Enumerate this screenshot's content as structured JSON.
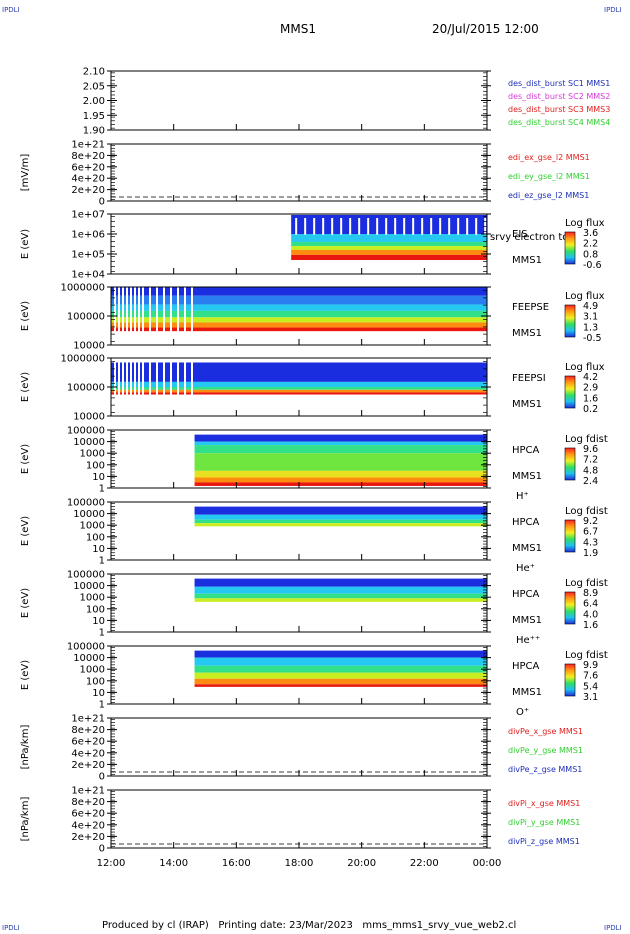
{
  "header": {
    "corner_label": "IPDLI",
    "title": "MMS1",
    "datetime": "20/Jul/2015 12:00"
  },
  "footer": {
    "produced_by": "Produced by cl (IRAP)",
    "printing_date": "Printing date: 23/Mar/2023",
    "filename": "mms_mms1_srvy_vue_web2.cl"
  },
  "x_axis": {
    "ticks": [
      "12:00",
      "14:00",
      "16:00",
      "18:00",
      "20:00",
      "22:00",
      "00:00"
    ],
    "xlim": [
      "12:00",
      "00:00"
    ]
  },
  "colors": {
    "red": "#e0201e",
    "green": "#2fd02f",
    "blue": "#1c2fb8",
    "magenta": "#d83ad8",
    "corner": "#2a3fb3"
  },
  "chart_data": [
    {
      "id": "des_dist",
      "type": "line",
      "ylabel": "",
      "ylim": [
        1.9,
        2.1
      ],
      "ticks": [
        "2.10",
        "2.05",
        "2.00",
        "1.95",
        "1.90"
      ],
      "series": [
        {
          "name": "des_dist_burst SC1 MMS1",
          "color": "#1c2fb8",
          "values": []
        },
        {
          "name": "des_dist_burst SC2 MMS2",
          "color": "#d83ad8",
          "values": []
        },
        {
          "name": "des_dist_burst SC3 MMS3",
          "color": "#e0201e",
          "values": []
        },
        {
          "name": "des_dist_burst SC4 MMS4",
          "color": "#2fd02f",
          "values": []
        }
      ]
    },
    {
      "id": "edi",
      "type": "line",
      "ylabel": "[mV/m]",
      "ylim": [
        0,
        1e+21
      ],
      "ticks": [
        "1e+21",
        "8e+20",
        "6e+20",
        "4e+20",
        "2e+20",
        "0"
      ],
      "zero_line": true,
      "series": [
        {
          "name": "edi_ex_gse_l2 MMS1",
          "color": "#e0201e",
          "values": []
        },
        {
          "name": "edi_ey_gse_l2 MMS1",
          "color": "#2fd02f",
          "values": []
        },
        {
          "name": "edi_ez_gse_l2 MMS1",
          "color": "#1c2fb8",
          "values": []
        }
      ]
    },
    {
      "id": "eis",
      "type": "heatmap",
      "ylabel": "E (eV)",
      "scale": "log",
      "ylim": [
        10000,
        10000000
      ],
      "ticks": [
        "1e+07",
        "1e+06",
        "1e+05",
        "1e+04"
      ],
      "labels": [
        "EIS",
        "MMS1"
      ],
      "overlay_label": "srvy electron to",
      "colorbar": {
        "title": "Log flux",
        "ticks": [
          "3.6",
          "2.2",
          "0.8",
          "-0.6"
        ]
      },
      "data_start": "17:45",
      "bands": [
        {
          "from": 1000000,
          "to": 9000000,
          "color": "#1a2ee0"
        },
        {
          "from": 400000,
          "to": 1000000,
          "color": "#25c8f0"
        },
        {
          "from": 250000,
          "to": 400000,
          "color": "#33e08a"
        },
        {
          "from": 160000,
          "to": 250000,
          "color": "#c8ee20"
        },
        {
          "from": 90000,
          "to": 160000,
          "color": "#ff8c10"
        },
        {
          "from": 50000,
          "to": 90000,
          "color": "#e81810"
        }
      ]
    },
    {
      "id": "feepse",
      "type": "heatmap",
      "ylabel": "E (eV)",
      "scale": "log",
      "ylim": [
        10000,
        1000000
      ],
      "ticks": [
        "1000000",
        "100000",
        "10000"
      ],
      "labels": [
        "FEEPSE",
        "MMS1"
      ],
      "colorbar": {
        "title": "Log flux",
        "ticks": [
          "4.9",
          "3.1",
          "1.3",
          "-0.5"
        ]
      },
      "data_start": "12:00",
      "bands": [
        {
          "from": 500000,
          "to": 1000000,
          "color": "#1a2ee0"
        },
        {
          "from": 250000,
          "to": 500000,
          "color": "#2a7ef0"
        },
        {
          "from": 150000,
          "to": 250000,
          "color": "#25c8f0"
        },
        {
          "from": 90000,
          "to": 150000,
          "color": "#33e08a"
        },
        {
          "from": 60000,
          "to": 90000,
          "color": "#c8ee20"
        },
        {
          "from": 40000,
          "to": 60000,
          "color": "#ff8c10"
        },
        {
          "from": 30000,
          "to": 40000,
          "color": "#e81810"
        }
      ]
    },
    {
      "id": "feepsi",
      "type": "heatmap",
      "ylabel": "E (eV)",
      "scale": "log",
      "ylim": [
        10000,
        1000000
      ],
      "ticks": [
        "1000000",
        "100000",
        "10000"
      ],
      "labels": [
        "FEEPSI",
        "MMS1"
      ],
      "colorbar": {
        "title": "Log flux",
        "ticks": [
          "4.2",
          "2.9",
          "1.6",
          "0.2"
        ]
      },
      "data_start": "12:00",
      "bands": [
        {
          "from": 150000,
          "to": 700000,
          "color": "#1a2ee0"
        },
        {
          "from": 100000,
          "to": 150000,
          "color": "#25c8f0"
        },
        {
          "from": 80000,
          "to": 100000,
          "color": "#33e08a"
        },
        {
          "from": 65000,
          "to": 80000,
          "color": "#ff8c10"
        },
        {
          "from": 55000,
          "to": 65000,
          "color": "#e81810"
        }
      ]
    },
    {
      "id": "hpca_h",
      "type": "heatmap",
      "ylabel": "E (eV)",
      "scale": "log",
      "ylim": [
        1,
        100000
      ],
      "ticks": [
        "100000",
        "10000",
        "1000",
        "100",
        "10",
        "1"
      ],
      "labels": [
        "HPCA",
        "MMS1",
        "H⁺"
      ],
      "colorbar": {
        "title": "Log fdist",
        "ticks": [
          "9.6",
          "7.2",
          "4.8",
          "2.4"
        ]
      },
      "data_start": "14:40",
      "bands": [
        {
          "from": 10000,
          "to": 40000,
          "color": "#1a2ee0"
        },
        {
          "from": 5000,
          "to": 10000,
          "color": "#25c8f0"
        },
        {
          "from": 1000,
          "to": 5000,
          "color": "#33e08a"
        },
        {
          "from": 30,
          "to": 1000,
          "color": "#6fe640"
        },
        {
          "from": 8,
          "to": 30,
          "color": "#e8e020"
        },
        {
          "from": 3,
          "to": 8,
          "color": "#ff8c10"
        },
        {
          "from": 1.5,
          "to": 3,
          "color": "#e81810"
        }
      ]
    },
    {
      "id": "hpca_he",
      "type": "heatmap",
      "ylabel": "E (eV)",
      "scale": "log",
      "ylim": [
        1,
        100000
      ],
      "ticks": [
        "100000",
        "10000",
        "1000",
        "100",
        "10",
        "1"
      ],
      "labels": [
        "HPCA",
        "MMS1",
        "He⁺"
      ],
      "colorbar": {
        "title": "Log fdist",
        "ticks": [
          "9.2",
          "6.7",
          "4.3",
          "1.9"
        ]
      },
      "data_start": "14:40",
      "bands": [
        {
          "from": 8000,
          "to": 40000,
          "color": "#1a2ee0"
        },
        {
          "from": 3000,
          "to": 8000,
          "color": "#25c8f0"
        },
        {
          "from": 1500,
          "to": 3000,
          "color": "#33e08a"
        },
        {
          "from": 800,
          "to": 1500,
          "color": "#c8ee20"
        }
      ]
    },
    {
      "id": "hpca_hepp",
      "type": "heatmap",
      "ylabel": "E (eV)",
      "scale": "log",
      "ylim": [
        1,
        100000
      ],
      "ticks": [
        "100000",
        "10000",
        "1000",
        "100",
        "10",
        "1"
      ],
      "labels": [
        "HPCA",
        "MMS1",
        "He⁺⁺"
      ],
      "colorbar": {
        "title": "Log fdist",
        "ticks": [
          "8.9",
          "6.4",
          "4.0",
          "1.6"
        ]
      },
      "data_start": "14:40",
      "bands": [
        {
          "from": 8000,
          "to": 40000,
          "color": "#1a2ee0"
        },
        {
          "from": 2000,
          "to": 8000,
          "color": "#25c8f0"
        },
        {
          "from": 800,
          "to": 2000,
          "color": "#33e08a"
        },
        {
          "from": 400,
          "to": 800,
          "color": "#c8ee20"
        }
      ]
    },
    {
      "id": "hpca_o",
      "type": "heatmap",
      "ylabel": "E (eV)",
      "scale": "log",
      "ylim": [
        1,
        100000
      ],
      "ticks": [
        "100000",
        "10000",
        "1000",
        "100",
        "10",
        "1"
      ],
      "labels": [
        "HPCA",
        "MMS1",
        "O⁺"
      ],
      "colorbar": {
        "title": "Log fdist",
        "ticks": [
          "9.9",
          "7.6",
          "5.4",
          "3.1"
        ]
      },
      "data_start": "14:40",
      "bands": [
        {
          "from": 10000,
          "to": 40000,
          "color": "#1a2ee0"
        },
        {
          "from": 2000,
          "to": 10000,
          "color": "#25c8f0"
        },
        {
          "from": 500,
          "to": 2000,
          "color": "#33e08a"
        },
        {
          "from": 150,
          "to": 500,
          "color": "#c8ee20"
        },
        {
          "from": 50,
          "to": 150,
          "color": "#ff8c10"
        },
        {
          "from": 30,
          "to": 50,
          "color": "#e81810"
        }
      ]
    },
    {
      "id": "divpe",
      "type": "line",
      "ylabel": "[nPa/km]",
      "ylim": [
        0,
        1e+21
      ],
      "ticks": [
        "1e+21",
        "8e+20",
        "6e+20",
        "4e+20",
        "2e+20",
        "0"
      ],
      "zero_line": true,
      "series": [
        {
          "name": "divPe_x_gse MMS1",
          "color": "#e0201e",
          "values": []
        },
        {
          "name": "divPe_y_gse MMS1",
          "color": "#2fd02f",
          "values": []
        },
        {
          "name": "divPe_z_gse MMS1",
          "color": "#1c2fb8",
          "values": []
        }
      ]
    },
    {
      "id": "divpi",
      "type": "line",
      "ylabel": "[nPa/km]",
      "ylim": [
        0,
        1e+21
      ],
      "ticks": [
        "1e+21",
        "8e+20",
        "6e+20",
        "4e+20",
        "2e+20",
        "0"
      ],
      "zero_line": true,
      "series": [
        {
          "name": "divPi_x_gse MMS1",
          "color": "#e0201e",
          "values": []
        },
        {
          "name": "divPi_y_gse MMS1",
          "color": "#2fd02f",
          "values": []
        },
        {
          "name": "divPi_z_gse MMS1",
          "color": "#1c2fb8",
          "values": []
        }
      ]
    }
  ]
}
